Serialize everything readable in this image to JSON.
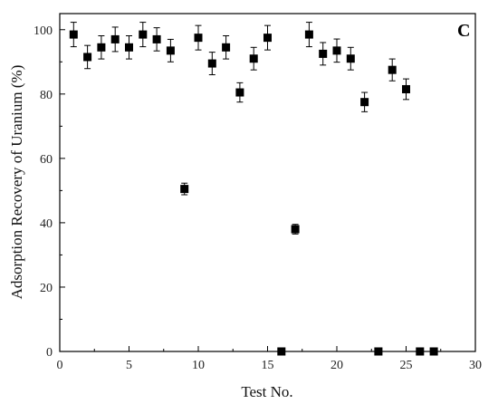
{
  "chart_data": {
    "type": "scatter",
    "panel_label": "C",
    "xlabel": "Test No.",
    "ylabel": "Adsorption Recovery of Uranium (%)",
    "xlim": [
      0,
      30
    ],
    "ylim": [
      0,
      105
    ],
    "xticks": [
      0,
      5,
      10,
      15,
      20,
      25,
      30
    ],
    "yticks": [
      0,
      20,
      40,
      60,
      80,
      100
    ],
    "grid": false,
    "marker": "square",
    "color": "#000000",
    "points": [
      {
        "x": 1,
        "y": 98.5,
        "err": 3.8
      },
      {
        "x": 2,
        "y": 91.5,
        "err": 3.6
      },
      {
        "x": 3,
        "y": 94.5,
        "err": 3.6
      },
      {
        "x": 4,
        "y": 97.0,
        "err": 3.8
      },
      {
        "x": 5,
        "y": 94.5,
        "err": 3.6
      },
      {
        "x": 6,
        "y": 98.5,
        "err": 3.8
      },
      {
        "x": 7,
        "y": 97.0,
        "err": 3.6
      },
      {
        "x": 8,
        "y": 93.5,
        "err": 3.5
      },
      {
        "x": 9,
        "y": 50.5,
        "err": 1.8
      },
      {
        "x": 10,
        "y": 97.5,
        "err": 3.8
      },
      {
        "x": 11,
        "y": 89.5,
        "err": 3.5
      },
      {
        "x": 12,
        "y": 94.5,
        "err": 3.6
      },
      {
        "x": 13,
        "y": 80.5,
        "err": 3.0
      },
      {
        "x": 14,
        "y": 91.0,
        "err": 3.5
      },
      {
        "x": 15,
        "y": 97.5,
        "err": 3.8
      },
      {
        "x": 16,
        "y": 0.0,
        "err": 0
      },
      {
        "x": 17,
        "y": 38.0,
        "err": 1.5
      },
      {
        "x": 18,
        "y": 98.5,
        "err": 3.8
      },
      {
        "x": 19,
        "y": 92.5,
        "err": 3.5
      },
      {
        "x": 20,
        "y": 93.5,
        "err": 3.6
      },
      {
        "x": 21,
        "y": 91.0,
        "err": 3.5
      },
      {
        "x": 22,
        "y": 77.5,
        "err": 3.0
      },
      {
        "x": 23,
        "y": 0.0,
        "err": 0
      },
      {
        "x": 24,
        "y": 87.5,
        "err": 3.4
      },
      {
        "x": 25,
        "y": 81.5,
        "err": 3.2
      },
      {
        "x": 26,
        "y": 0.0,
        "err": 0
      },
      {
        "x": 27,
        "y": 0.0,
        "err": 0
      }
    ]
  }
}
